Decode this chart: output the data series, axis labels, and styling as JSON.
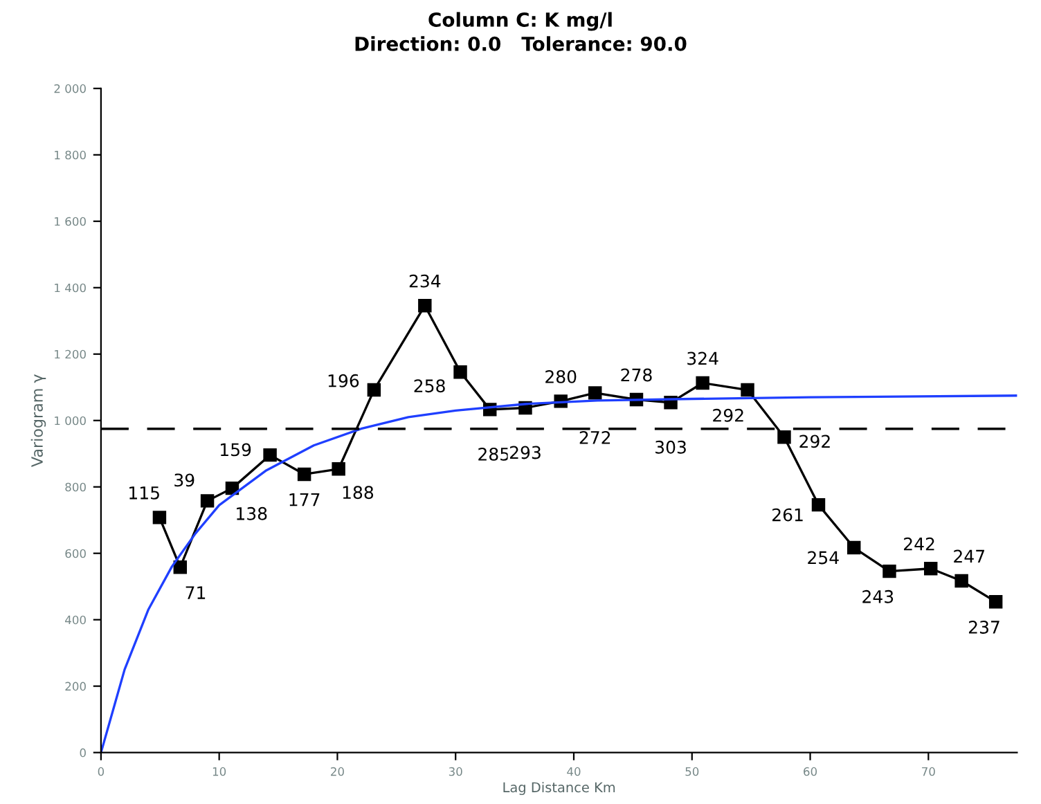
{
  "chart_data": {
    "type": "line",
    "title": "Column C: K mg/l",
    "subtitle": "Direction: 0.0   Tolerance: 90.0",
    "xlabel": "Lag Distance Km",
    "ylabel": "Variogram γ",
    "xlim": [
      0,
      77.5
    ],
    "xticks": [
      0,
      10,
      20,
      30,
      40,
      50,
      60,
      70
    ],
    "ylim": [
      0,
      2000
    ],
    "yticks": [
      0,
      200,
      400,
      600,
      800,
      {
        "value": 1000,
        "label": "1 000"
      },
      {
        "value": 1200,
        "label": "1 200"
      },
      {
        "value": 1400,
        "label": "1 400"
      },
      {
        "value": 1600,
        "label": "1 600"
      },
      {
        "value": 1800,
        "label": "1 800"
      },
      {
        "value": 2000,
        "label": "2 000"
      }
    ],
    "grid": false,
    "legend": false,
    "series": [
      {
        "color": "#000000",
        "marker": "square",
        "line_style": "solid",
        "x": [
          4.95,
          6.7,
          9.0,
          11.1,
          14.3,
          17.2,
          20.1,
          23.1,
          27.4,
          30.4,
          32.9,
          35.9,
          38.9,
          41.8,
          45.3,
          48.2,
          50.9,
          54.7,
          57.8,
          60.7,
          63.7,
          66.7,
          70.2,
          72.8,
          75.7
        ],
        "values": [
          708,
          558,
          758,
          796,
          896,
          838,
          854,
          1092,
          1346,
          1146,
          1033,
          1038,
          1058,
          1083,
          1063,
          1054,
          1113,
          1092,
          950,
          746,
          617,
          546,
          554,
          517,
          454
        ]
      },
      {
        "color": "#1f3fff",
        "marker": "none",
        "line_style": "solid",
        "x": [
          0,
          2,
          4,
          6,
          8,
          10,
          14,
          18,
          22,
          26,
          30,
          36,
          42,
          50,
          60,
          77.5
        ],
        "values": [
          0,
          250,
          430,
          560,
          660,
          745,
          850,
          925,
          975,
          1010,
          1030,
          1050,
          1060,
          1065,
          1070,
          1075
        ]
      }
    ],
    "annotations": [
      {
        "text": "115",
        "x": 4.95,
        "y": 708
      },
      {
        "text": "71",
        "x": 6.7,
        "y": 558
      },
      {
        "text": "39",
        "x": 9.0,
        "y": 758
      },
      {
        "text": "138",
        "x": 11.1,
        "y": 796
      },
      {
        "text": "159",
        "x": 14.3,
        "y": 896
      },
      {
        "text": "177",
        "x": 17.2,
        "y": 838
      },
      {
        "text": "188",
        "x": 20.1,
        "y": 854
      },
      {
        "text": "196",
        "x": 23.1,
        "y": 1092
      },
      {
        "text": "234",
        "x": 27.4,
        "y": 1346
      },
      {
        "text": "258",
        "x": 30.4,
        "y": 1146
      },
      {
        "text": "285",
        "x": 32.9,
        "y": 1033
      },
      {
        "text": "293",
        "x": 35.9,
        "y": 1038
      },
      {
        "text": "280",
        "x": 38.9,
        "y": 1058
      },
      {
        "text": "272",
        "x": 41.8,
        "y": 1083
      },
      {
        "text": "278",
        "x": 45.3,
        "y": 1063
      },
      {
        "text": "303",
        "x": 48.2,
        "y": 1054
      },
      {
        "text": "324",
        "x": 50.9,
        "y": 1113
      },
      {
        "text": "292",
        "x": 54.7,
        "y": 1092
      },
      {
        "text": "292",
        "x": 57.8,
        "y": 950
      },
      {
        "text": "261",
        "x": 60.7,
        "y": 746
      },
      {
        "text": "254",
        "x": 63.7,
        "y": 617
      },
      {
        "text": "243",
        "x": 66.7,
        "y": 546
      },
      {
        "text": "242",
        "x": 70.2,
        "y": 554
      },
      {
        "text": "247",
        "x": 72.8,
        "y": 517
      },
      {
        "text": "237",
        "x": 75.7,
        "y": 454
      }
    ],
    "ref_lines": [
      {
        "axis": "y",
        "value": 975,
        "color": "#000000",
        "line_style": "dashed"
      }
    ]
  }
}
